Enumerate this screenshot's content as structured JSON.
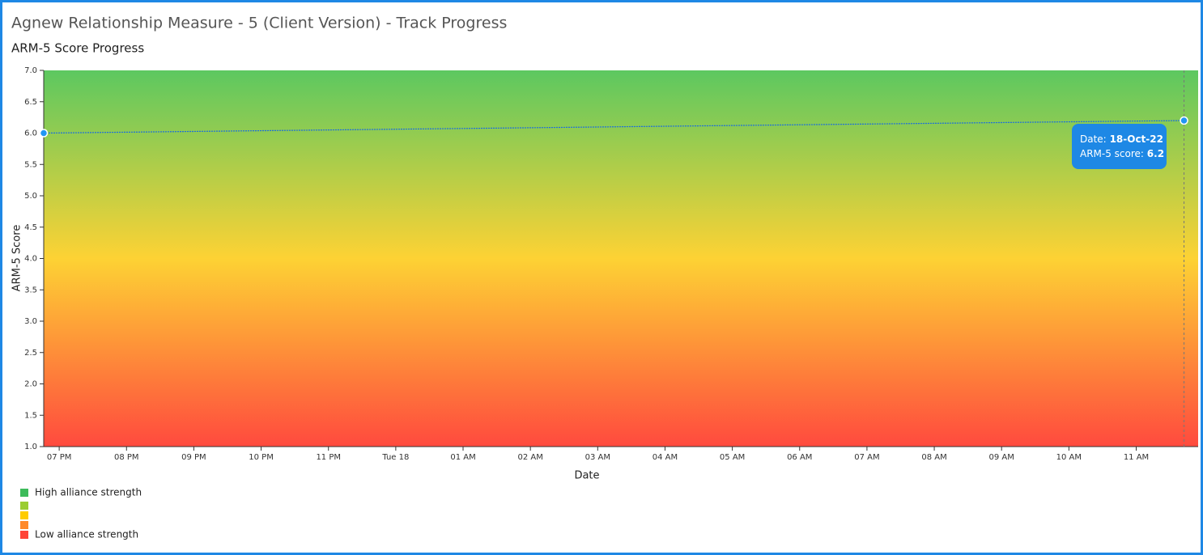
{
  "page_title": "Agnew Relationship Measure - 5 (Client Version) - Track Progress",
  "chart_data": {
    "type": "line",
    "title": "ARM-5 Score Progress",
    "x_label": "Date",
    "y_label": "ARM-5 Score",
    "series": [
      {
        "name": "ARM-5 score",
        "color": "#1e6fd9",
        "x": [
          18.77,
          35.71
        ],
        "values": [
          6.0,
          6.2
        ]
      }
    ],
    "xlim": [
      18.77,
      35.92
    ],
    "xticks": [
      {
        "value": 19,
        "label": "07 PM"
      },
      {
        "value": 20,
        "label": "08 PM"
      },
      {
        "value": 21,
        "label": "09 PM"
      },
      {
        "value": 22,
        "label": "10 PM"
      },
      {
        "value": 23,
        "label": "11 PM"
      },
      {
        "value": 24,
        "label": "Tue 18"
      },
      {
        "value": 25,
        "label": "01 AM"
      },
      {
        "value": 26,
        "label": "02 AM"
      },
      {
        "value": 27,
        "label": "03 AM"
      },
      {
        "value": 28,
        "label": "04 AM"
      },
      {
        "value": 29,
        "label": "05 AM"
      },
      {
        "value": 30,
        "label": "06 AM"
      },
      {
        "value": 31,
        "label": "07 AM"
      },
      {
        "value": 32,
        "label": "08 AM"
      },
      {
        "value": 33,
        "label": "09 AM"
      },
      {
        "value": 34,
        "label": "10 AM"
      },
      {
        "value": 35,
        "label": "11 AM"
      }
    ],
    "ylim": [
      1,
      7
    ],
    "yticks": [
      {
        "value": 1,
        "label": "1.0"
      },
      1.5,
      {
        "value": 2,
        "label": "2.0"
      },
      2.5,
      {
        "value": 3,
        "label": "3.0"
      },
      3.5,
      {
        "value": 4,
        "label": "4.0"
      },
      4.5,
      {
        "value": 5,
        "label": "5.0"
      },
      5.5,
      {
        "value": 6,
        "label": "6.0"
      },
      6.5,
      {
        "value": 7,
        "label": "7.0"
      }
    ],
    "background_gradient": [
      "#5cc860",
      "#fdd234",
      "#ff4a3e"
    ],
    "tooltip": {
      "date_label": "Date:",
      "date": "18-Oct-22",
      "score_label": "ARM-5 score:"
    },
    "legend": {
      "colors": [
        "#3dbb5a",
        "#9acd32",
        "#ffcc00",
        "#ff8a2a",
        "#ff4436"
      ],
      "high_label": "High alliance strength",
      "low_label": "Low alliance strength"
    }
  }
}
